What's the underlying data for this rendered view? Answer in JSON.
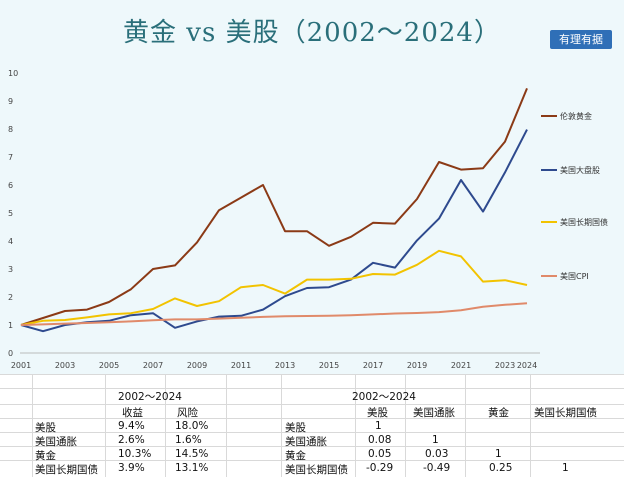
{
  "header": {
    "title": "黄金 vs 美股（2002～2024）",
    "badge": "有理有据"
  },
  "chart_data": {
    "type": "line",
    "x": [
      2001,
      2002,
      2003,
      2004,
      2005,
      2006,
      2007,
      2008,
      2009,
      2010,
      2011,
      2012,
      2013,
      2014,
      2015,
      2016,
      2017,
      2018,
      2019,
      2020,
      2021,
      2022,
      2023,
      2024
    ],
    "x_tick_labels": [
      "2001",
      "2003",
      "2005",
      "2007",
      "2009",
      "2011",
      "2013",
      "2015",
      "2017",
      "2019",
      "2021",
      "2023",
      "2024"
    ],
    "y_tick_labels": [
      "0",
      "1",
      "2",
      "3",
      "4",
      "5",
      "6",
      "7",
      "8",
      "9",
      "10"
    ],
    "ylim": [
      0,
      10
    ],
    "grid": false,
    "legend_position": "right",
    "series": [
      {
        "name": "伦敦黄金",
        "color": "#8b3a16",
        "values": [
          1,
          1.25,
          1.5,
          1.55,
          1.82,
          2.28,
          3.0,
          3.13,
          3.95,
          5.1,
          5.55,
          6.0,
          4.35,
          4.35,
          3.83,
          4.15,
          4.65,
          4.62,
          5.5,
          6.82,
          6.55,
          6.6,
          7.55,
          9.45
        ]
      },
      {
        "name": "美国大盘股",
        "color": "#2e4a8e",
        "values": [
          1,
          0.78,
          1.0,
          1.1,
          1.15,
          1.35,
          1.42,
          0.9,
          1.13,
          1.3,
          1.33,
          1.55,
          2.03,
          2.32,
          2.35,
          2.62,
          3.22,
          3.05,
          4.02,
          4.8,
          6.18,
          5.05,
          6.45,
          7.98
        ]
      },
      {
        "name": "美国长期国债",
        "color": "#f2c300",
        "values": [
          1,
          1.15,
          1.18,
          1.27,
          1.38,
          1.42,
          1.57,
          1.95,
          1.68,
          1.85,
          2.35,
          2.43,
          2.12,
          2.62,
          2.62,
          2.65,
          2.82,
          2.8,
          3.15,
          3.65,
          3.45,
          2.55,
          2.6,
          2.43
        ]
      },
      {
        "name": "美国CPI",
        "color": "#e08a6a",
        "values": [
          1,
          1.02,
          1.05,
          1.07,
          1.1,
          1.13,
          1.17,
          1.2,
          1.2,
          1.23,
          1.26,
          1.29,
          1.31,
          1.32,
          1.33,
          1.35,
          1.38,
          1.41,
          1.43,
          1.46,
          1.53,
          1.65,
          1.72,
          1.78
        ]
      }
    ]
  },
  "table_left": {
    "header": "2002～2024",
    "columns": [
      "收益",
      "风险"
    ],
    "rows": [
      {
        "label": "美股",
        "c1": "9.4%",
        "c2": "18.0%"
      },
      {
        "label": "美国通胀",
        "c1": "2.6%",
        "c2": "1.6%"
      },
      {
        "label": "黄金",
        "c1": "10.3%",
        "c2": "14.5%"
      },
      {
        "label": "美国长期国债",
        "c1": "3.9%",
        "c2": "13.1%"
      }
    ]
  },
  "table_right": {
    "header": "2002～2024",
    "columns": [
      "美股",
      "美国通胀",
      "黄金",
      "美国长期国债"
    ],
    "rows": [
      {
        "label": "美股",
        "c1": "1",
        "c2": "",
        "c3": "",
        "c4": ""
      },
      {
        "label": "美国通胀",
        "c1": "0.08",
        "c2": "1",
        "c3": "",
        "c4": ""
      },
      {
        "label": "黄金",
        "c1": "0.05",
        "c2": "0.03",
        "c3": "1",
        "c4": ""
      },
      {
        "label": "美国长期国债",
        "c1": "-0.29",
        "c2": "-0.49",
        "c3": "0.25",
        "c4": "1"
      }
    ]
  }
}
